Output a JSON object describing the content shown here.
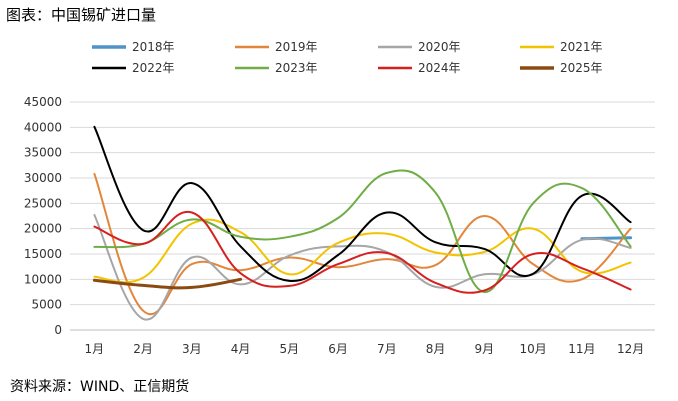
{
  "header": {
    "title": "图表：中国锡矿进口量"
  },
  "footer": {
    "source": "资料来源：WIND、正信期货"
  },
  "chart_data": {
    "type": "line",
    "title": "",
    "xlabel": "",
    "ylabel": "",
    "ylim": [
      0,
      45000
    ],
    "yticks": [
      0,
      5000,
      10000,
      15000,
      20000,
      25000,
      30000,
      35000,
      40000,
      45000
    ],
    "categories": [
      "1月",
      "2月",
      "3月",
      "4月",
      "5月",
      "6月",
      "7月",
      "8月",
      "9月",
      "10月",
      "11月",
      "12月"
    ],
    "grid": "horizontal",
    "legend": "top",
    "series": [
      {
        "name": "2018年",
        "color": "#4f94c8",
        "values": [
          null,
          null,
          null,
          null,
          null,
          null,
          null,
          null,
          null,
          null,
          18000,
          18200
        ]
      },
      {
        "name": "2019年",
        "color": "#e4863a",
        "values": [
          30800,
          3800,
          13000,
          11800,
          14300,
          12400,
          14000,
          12800,
          22500,
          13000,
          10000,
          20000
        ]
      },
      {
        "name": "2020年",
        "color": "#a6a6a6",
        "values": [
          22700,
          2200,
          14300,
          9000,
          14700,
          16500,
          15400,
          8500,
          11000,
          11000,
          17800,
          16200
        ]
      },
      {
        "name": "2021年",
        "color": "#f2c400",
        "values": [
          10500,
          10300,
          21000,
          19300,
          11000,
          17200,
          19000,
          15300,
          15400,
          20000,
          11500,
          13300
        ]
      },
      {
        "name": "2022年",
        "color": "#000000",
        "values": [
          40100,
          19700,
          29000,
          16500,
          9700,
          14800,
          23200,
          17300,
          16000,
          11100,
          26500,
          21300
        ]
      },
      {
        "name": "2023年",
        "color": "#70ad47",
        "values": [
          16400,
          17000,
          21800,
          18400,
          18400,
          22100,
          31000,
          27100,
          7500,
          25000,
          28000,
          16500
        ]
      },
      {
        "name": "2024年",
        "color": "#d62020",
        "values": [
          20400,
          17000,
          23200,
          11200,
          8700,
          13000,
          15200,
          9300,
          7800,
          15000,
          12200,
          8000
        ]
      },
      {
        "name": "2025年",
        "color": "#8b4a12",
        "values": [
          9800,
          8800,
          8400,
          10000,
          null,
          null,
          null,
          null,
          null,
          null,
          null,
          null
        ]
      }
    ]
  }
}
